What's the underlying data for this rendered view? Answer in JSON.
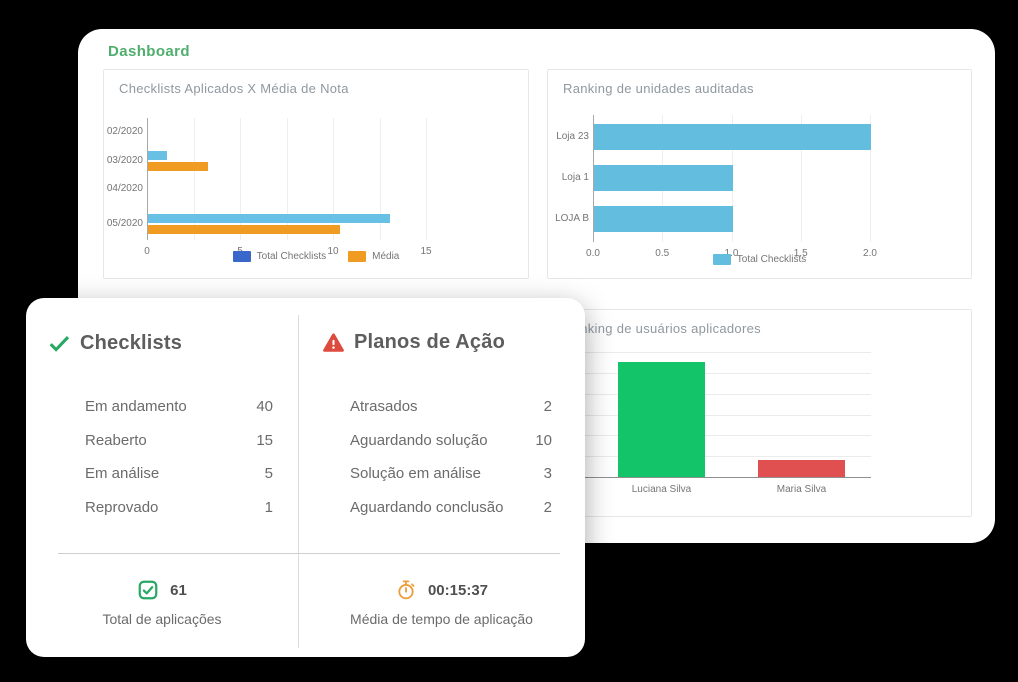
{
  "app": {
    "title": "Dashboard"
  },
  "colors": {
    "accent_green": "#4fae6d",
    "bar_light_blue": "#68c1e4",
    "bar_orange": "#f09c22",
    "legend_dark_blue": "#3a67ca",
    "bar_green": "#13c468",
    "bar_red": "#e05050",
    "icon_check_green": "#27a865",
    "icon_alert_red": "#dd4a3e",
    "icon_timer_orange": "#ee9d3d"
  },
  "summary": {
    "checklists": {
      "title": "Checklists",
      "icon": "check-icon",
      "items": [
        {
          "label": "Em andamento",
          "value": "40"
        },
        {
          "label": "Reaberto",
          "value": "15"
        },
        {
          "label": "Em análise",
          "value": "5"
        },
        {
          "label": "Reprovado",
          "value": "1"
        }
      ]
    },
    "planos": {
      "title": "Planos de Ação",
      "icon": "alert-triangle-icon",
      "items": [
        {
          "label": "Atrasados",
          "value": "2"
        },
        {
          "label": "Aguardando solução",
          "value": "10"
        },
        {
          "label": "Solução em análise",
          "value": "3"
        },
        {
          "label": "Aguardando conclusão",
          "value": "2"
        }
      ]
    },
    "totals": {
      "aplicacoes": {
        "icon": "checkbox-icon",
        "value": "61",
        "label": "Total de aplicações"
      },
      "tempo": {
        "icon": "stopwatch-icon",
        "value": "00:15:37",
        "label": "Média de tempo de aplicação"
      }
    }
  },
  "chart_data": [
    {
      "type": "bar",
      "orientation": "horizontal",
      "title": "Checklists Aplicados X Média de Nota",
      "categories": [
        "02/2020",
        "03/2020",
        "04/2020",
        "05/2020"
      ],
      "series": [
        {
          "name": "Total Checklists",
          "bar_color": "#68c1e4",
          "legend_color": "#3a67ca",
          "values": [
            0,
            1,
            0,
            13
          ]
        },
        {
          "name": "Média",
          "bar_color": "#f09c22",
          "legend_color": "#f09c22",
          "values": [
            0,
            3.2,
            0,
            10.3
          ]
        }
      ],
      "xlim": [
        0,
        15
      ],
      "xticks": [
        {
          "value": 0,
          "label": "0"
        },
        {
          "value": 5,
          "label": "5"
        },
        {
          "value": 10,
          "label": "10"
        },
        {
          "value": 15,
          "label": "15"
        }
      ],
      "grid_interval": 2.5,
      "grid": true,
      "legend_position": "bottom"
    },
    {
      "type": "bar",
      "orientation": "horizontal",
      "title": "Ranking de unidades auditadas",
      "categories": [
        "Loja 23",
        "Loja 1",
        "LOJA B"
      ],
      "series": [
        {
          "name": "Total Checklists",
          "bar_color": "#62bdde",
          "legend_color": "#62bdde",
          "values": [
            2,
            1,
            1
          ]
        }
      ],
      "xlim": [
        0,
        2
      ],
      "xticks": [
        {
          "value": 0,
          "label": "0.0"
        },
        {
          "value": 0.5,
          "label": "0.5"
        },
        {
          "value": 1,
          "label": "1.0"
        },
        {
          "value": 1.5,
          "label": "1.5"
        },
        {
          "value": 2,
          "label": "2.0"
        }
      ],
      "grid_interval": 0.5,
      "grid": true,
      "legend_position": "bottom"
    },
    {
      "type": "bar",
      "orientation": "vertical",
      "title": "Ranking de usuários aplicadores",
      "categories": [
        "Luciana Silva",
        "Maria Silva"
      ],
      "series": [
        {
          "name": "Total Checklists",
          "values": [
            11,
            1.6
          ],
          "bar_colors": [
            "#13c468",
            "#e05050"
          ]
        }
      ],
      "ylim": [
        0,
        12
      ],
      "grid_interval": 2,
      "grid": true,
      "legend_position": "none"
    }
  ]
}
